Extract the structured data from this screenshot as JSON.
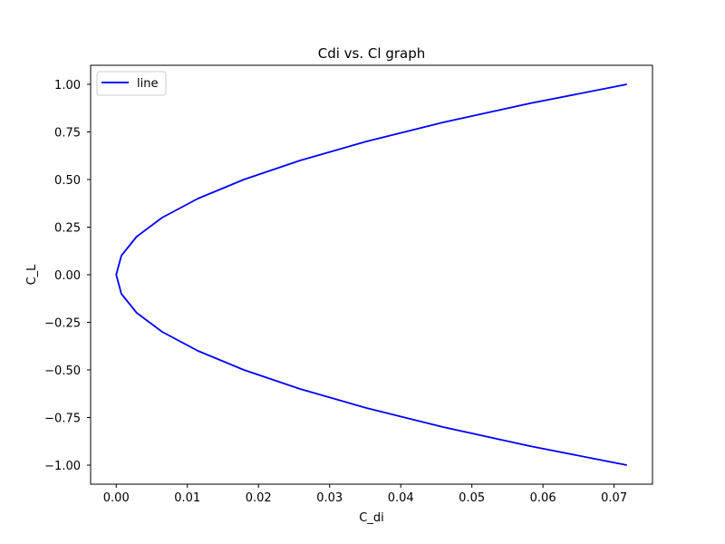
{
  "chart_data": {
    "type": "line",
    "title": "Cdi vs. Cl graph",
    "xlabel": "C_di",
    "ylabel": "C_L",
    "xlim": [
      -0.0036,
      0.0754
    ],
    "ylim": [
      -1.1,
      1.1
    ],
    "xticks": [
      "0.00",
      "0.01",
      "0.02",
      "0.03",
      "0.04",
      "0.05",
      "0.06",
      "0.07"
    ],
    "xtick_values": [
      0,
      0.01,
      0.02,
      0.03,
      0.04,
      0.05,
      0.06,
      0.07
    ],
    "yticks": [
      "−1.00",
      "−0.75",
      "−0.50",
      "−0.25",
      "0.00",
      "0.25",
      "0.50",
      "0.75",
      "1.00"
    ],
    "ytick_values": [
      -1,
      -0.75,
      -0.5,
      -0.25,
      0,
      0.25,
      0.5,
      0.75,
      1
    ],
    "grid": false,
    "legend_position": "top-left",
    "series": [
      {
        "name": "line",
        "color": "#0000ff",
        "relationship": "C_di = 0.0718 * C_L^2",
        "x": [
          0.0718,
          0.05816,
          0.04595,
          0.03518,
          0.02585,
          0.01795,
          0.01149,
          0.00646,
          0.00287,
          0.00072,
          0.0,
          0.00072,
          0.00287,
          0.00646,
          0.01149,
          0.01795,
          0.02585,
          0.03518,
          0.04595,
          0.05816,
          0.0718
        ],
        "y": [
          -1.0,
          -0.9,
          -0.8,
          -0.7,
          -0.6,
          -0.5,
          -0.4,
          -0.3,
          -0.2,
          -0.1,
          0.0,
          0.1,
          0.2,
          0.3,
          0.4,
          0.5,
          0.6,
          0.7,
          0.8,
          0.9,
          1.0
        ]
      }
    ]
  }
}
